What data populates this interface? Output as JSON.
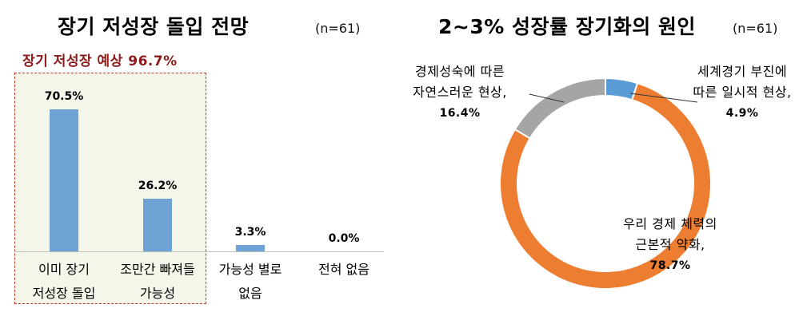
{
  "left_chart": {
    "title": "장기 저성장 돌입 전망",
    "n_label": "(n=61)",
    "highlight_label": "장기 저성장 예상   96.7%",
    "chart_data": {
      "type": "bar",
      "categories": [
        [
          "이미 장기",
          "저성장 돌입"
        ],
        [
          "조만간 빠져들",
          "가능성"
        ],
        [
          "가능성 별로",
          "없음"
        ],
        [
          "전혀 없음"
        ]
      ],
      "values": [
        70.5,
        26.2,
        3.3,
        0.0
      ],
      "value_labels": [
        "70.5%",
        "26.2%",
        "3.3%",
        "0.0%"
      ],
      "ylim": [
        0,
        100
      ]
    }
  },
  "right_chart": {
    "title": "2~3% 성장률 장기화의 원인",
    "n_label": "(n=61)",
    "chart_data": {
      "type": "pie",
      "donut": true,
      "slices": [
        {
          "label": [
            "세계경기 부진에",
            "따른 일시적 현상,"
          ],
          "value": 4.9,
          "value_label": "4.9%",
          "color": "#5b9bd5"
        },
        {
          "label": [
            "우리 경제 체력의",
            "근본적 약화,"
          ],
          "value": 78.7,
          "value_label": "78.7%",
          "color": "#ed7d31"
        },
        {
          "label": [
            "경제성숙에 따른",
            "자연스러운 현상,"
          ],
          "value": 16.4,
          "value_label": "16.4%",
          "color": "#a5a5a5"
        }
      ]
    }
  }
}
